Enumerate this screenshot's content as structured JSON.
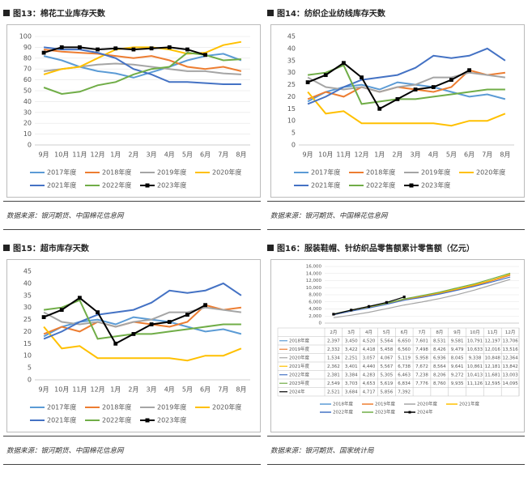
{
  "chart_data": [
    {
      "type": "line",
      "title": "图13：棉花工业库存天数",
      "source": "数据来源：银河期货、中国棉花信息网",
      "categories": [
        "9月",
        "10月",
        "11月",
        "12月",
        "1月",
        "2月",
        "3月",
        "4月",
        "5月",
        "6月",
        "7月",
        "8月"
      ],
      "ylim": [
        0,
        100
      ],
      "yticks": [
        0,
        10,
        20,
        30,
        40,
        50,
        60,
        70,
        80,
        90,
        100
      ],
      "grid": true,
      "series": [
        {
          "name": "2017年度",
          "color": "#5b9bd5",
          "values": [
            82,
            78,
            72,
            68,
            66,
            62,
            67,
            72,
            78,
            82,
            84,
            78
          ]
        },
        {
          "name": "2018年度",
          "color": "#ed7d31",
          "values": [
            88,
            86,
            85,
            84,
            82,
            80,
            82,
            78,
            72,
            70,
            72,
            68
          ]
        },
        {
          "name": "2019年度",
          "color": "#a5a5a5",
          "values": [
            68,
            70,
            72,
            74,
            75,
            74,
            72,
            70,
            68,
            68,
            66,
            65
          ]
        },
        {
          "name": "2020年度",
          "color": "#ffc000",
          "values": [
            65,
            70,
            72,
            80,
            88,
            90,
            90,
            88,
            84,
            85,
            92,
            95
          ]
        },
        {
          "name": "2021年度",
          "color": "#4472c4",
          "values": [
            90,
            88,
            88,
            85,
            80,
            70,
            65,
            58,
            58,
            57,
            56,
            56
          ]
        },
        {
          "name": "2022年度",
          "color": "#70ad47",
          "values": [
            53,
            47,
            49,
            55,
            58,
            65,
            70,
            72,
            85,
            83,
            78,
            79
          ]
        },
        {
          "name": "2023年度",
          "color": "#000000",
          "marker": "square",
          "values": [
            85,
            90,
            90,
            88,
            89,
            88,
            89,
            90,
            88,
            83,
            null,
            null
          ]
        }
      ]
    },
    {
      "type": "line",
      "title": "图14：纺织企业纺线库存天数",
      "source": "数据来源：银河期货、中国棉花信息网",
      "categories": [
        "9月",
        "10月",
        "11月",
        "12月",
        "1月",
        "2月",
        "3月",
        "4月",
        "5月",
        "6月",
        "7月",
        "8月"
      ],
      "ylim": [
        0,
        45
      ],
      "yticks": [
        0,
        5,
        10,
        15,
        20,
        25,
        30,
        35,
        40,
        45
      ],
      "grid": false,
      "series": [
        {
          "name": "2017年度",
          "color": "#5b9bd5",
          "values": [
            18,
            22,
            24,
            25,
            23,
            26,
            25,
            24,
            22,
            20,
            21,
            19
          ]
        },
        {
          "name": "2018年度",
          "color": "#ed7d31",
          "values": [
            19,
            22,
            20,
            24,
            22,
            24,
            23,
            22,
            24,
            31,
            29,
            30
          ]
        },
        {
          "name": "2019年度",
          "color": "#a5a5a5",
          "values": [
            28,
            24,
            23,
            24,
            22,
            24,
            25,
            28,
            28,
            30,
            29,
            28
          ]
        },
        {
          "name": "2020年度",
          "color": "#ffc000",
          "values": [
            22,
            13,
            14,
            9,
            9,
            9,
            9,
            9,
            8,
            10,
            10,
            13
          ]
        },
        {
          "name": "2021年度",
          "color": "#4472c4",
          "values": [
            17,
            20,
            24,
            27,
            28,
            29,
            32,
            37,
            36,
            37,
            40,
            35
          ]
        },
        {
          "name": "2022年度",
          "color": "#70ad47",
          "values": [
            29,
            30,
            33,
            17,
            18,
            19,
            19,
            20,
            21,
            22,
            23,
            23
          ]
        },
        {
          "name": "2023年度",
          "color": "#000000",
          "marker": "square",
          "values": [
            26,
            29,
            34,
            28,
            15,
            19,
            23,
            24,
            27,
            31,
            null,
            null
          ]
        }
      ]
    },
    {
      "type": "line",
      "title": "图15：超市库存天数",
      "source": "数据来源：银河期货、中国棉花信息网",
      "categories": [
        "9月",
        "10月",
        "11月",
        "12月",
        "1月",
        "2月",
        "3月",
        "4月",
        "5月",
        "6月",
        "7月",
        "8月"
      ],
      "ylim": [
        0,
        45
      ],
      "yticks": [
        0,
        5,
        10,
        15,
        20,
        25,
        30,
        35,
        40,
        45
      ],
      "grid": false,
      "series": [
        {
          "name": "2017年度",
          "color": "#5b9bd5",
          "values": [
            18,
            22,
            24,
            25,
            23,
            26,
            25,
            24,
            22,
            20,
            21,
            19
          ]
        },
        {
          "name": "2018年度",
          "color": "#ed7d31",
          "values": [
            19,
            22,
            20,
            24,
            22,
            24,
            23,
            22,
            24,
            31,
            29,
            30
          ]
        },
        {
          "name": "2019年度",
          "color": "#a5a5a5",
          "values": [
            28,
            24,
            23,
            24,
            22,
            24,
            25,
            28,
            28,
            30,
            29,
            28
          ]
        },
        {
          "name": "2020年度",
          "color": "#ffc000",
          "values": [
            22,
            13,
            14,
            9,
            9,
            9,
            9,
            9,
            8,
            10,
            10,
            13
          ]
        },
        {
          "name": "2021年度",
          "color": "#4472c4",
          "values": [
            17,
            20,
            24,
            27,
            28,
            29,
            32,
            37,
            36,
            37,
            40,
            35
          ]
        },
        {
          "name": "2022年度",
          "color": "#70ad47",
          "values": [
            29,
            30,
            33,
            17,
            18,
            19,
            19,
            20,
            21,
            22,
            23,
            23
          ]
        },
        {
          "name": "2023年度",
          "color": "#000000",
          "marker": "square",
          "values": [
            26,
            29,
            34,
            28,
            15,
            19,
            23,
            24,
            27,
            31,
            null,
            null
          ]
        }
      ]
    },
    {
      "type": "line",
      "title": "图16：服装鞋帽、针纺织品零售额累计零售额（亿元）",
      "source": "数据来源：银河期货、国家统计局",
      "data_table": true,
      "categories": [
        "2月",
        "3月",
        "4月",
        "5月",
        "6月",
        "7月",
        "8月",
        "9月",
        "10月",
        "11月",
        "12月"
      ],
      "ylim": [
        0,
        16000
      ],
      "yticks": [
        0,
        {
          "value": 2000,
          "label": "2,000"
        },
        {
          "value": 4000,
          "label": "4,000"
        },
        {
          "value": 6000,
          "label": "6,000"
        },
        {
          "value": 8000,
          "label": "8,000"
        },
        {
          "value": 10000,
          "label": "10,000"
        },
        {
          "value": 12000,
          "label": "12,000"
        },
        {
          "value": 14000,
          "label": "14,000"
        },
        {
          "value": 16000,
          "label": "16,000"
        }
      ],
      "grid": true,
      "series": [
        {
          "name": "2018年度",
          "color": "#5b9bd5",
          "values": [
            2397,
            3450,
            4520,
            5564,
            6650,
            7601,
            8531,
            9581,
            10791,
            12197,
            13706
          ],
          "value_labels": [
            "2,397",
            "3,450",
            "4,520",
            "5,564",
            "6,650",
            "7,601",
            "8,531",
            "9,581",
            "10,791",
            "12,197",
            "13,706"
          ]
        },
        {
          "name": "2019年度",
          "color": "#ed7d31",
          "values": [
            2332,
            3422,
            4418,
            5458,
            6560,
            7498,
            8426,
            9479,
            10633,
            12016,
            13516
          ],
          "value_labels": [
            "2,332",
            "3,422",
            "4,418",
            "5,458",
            "6,560",
            "7,498",
            "8,426",
            "9,479",
            "10,633",
            "12,016",
            "13,516"
          ]
        },
        {
          "name": "2020年度",
          "color": "#a5a5a5",
          "values": [
            1534,
            2251,
            3057,
            4067,
            5119,
            5958,
            6936,
            8045,
            9338,
            10848,
            12364
          ],
          "value_labels": [
            "1,534",
            "2,251",
            "3,057",
            "4,067",
            "5,119",
            "5,958",
            "6,936",
            "8,045",
            "9,338",
            "10,848",
            "12,364"
          ]
        },
        {
          "name": "2021年度",
          "color": "#ffc000",
          "values": [
            2362,
            3401,
            4440,
            5567,
            6738,
            7672,
            8564,
            9641,
            10861,
            12181,
            13842
          ],
          "value_labels": [
            "2,362",
            "3,401",
            "4,440",
            "5,567",
            "6,738",
            "7,672",
            "8,564",
            "9,641",
            "10,861",
            "12,181",
            "13,842"
          ]
        },
        {
          "name": "2022年度",
          "color": "#4472c4",
          "values": [
            2381,
            3384,
            4283,
            5305,
            6463,
            7238,
            8206,
            9272,
            10413,
            11681,
            13003
          ],
          "value_labels": [
            "2,381",
            "3,384",
            "4,283",
            "5,305",
            "6,463",
            "7,238",
            "8,206",
            "9,272",
            "10,413",
            "11,681",
            "13,003"
          ]
        },
        {
          "name": "2023年度",
          "color": "#70ad47",
          "values": [
            2549,
            3703,
            4653,
            5619,
            6834,
            7776,
            8760,
            9935,
            11126,
            12595,
            14095
          ],
          "value_labels": [
            "2,549",
            "3,703",
            "4,653",
            "5,619",
            "6,834",
            "7,776",
            "8,760",
            "9,935",
            "11,126",
            "12,595",
            "14,095"
          ]
        },
        {
          "name": "2024年",
          "color": "#000000",
          "marker": "square",
          "values": [
            2521,
            3684,
            4717,
            5856,
            7392,
            null,
            null,
            null,
            null,
            null,
            null
          ],
          "value_labels": [
            "2,521",
            "3,684",
            "4,717",
            "5,856",
            "7,392",
            null,
            null,
            null,
            null,
            null,
            null
          ]
        }
      ]
    }
  ]
}
